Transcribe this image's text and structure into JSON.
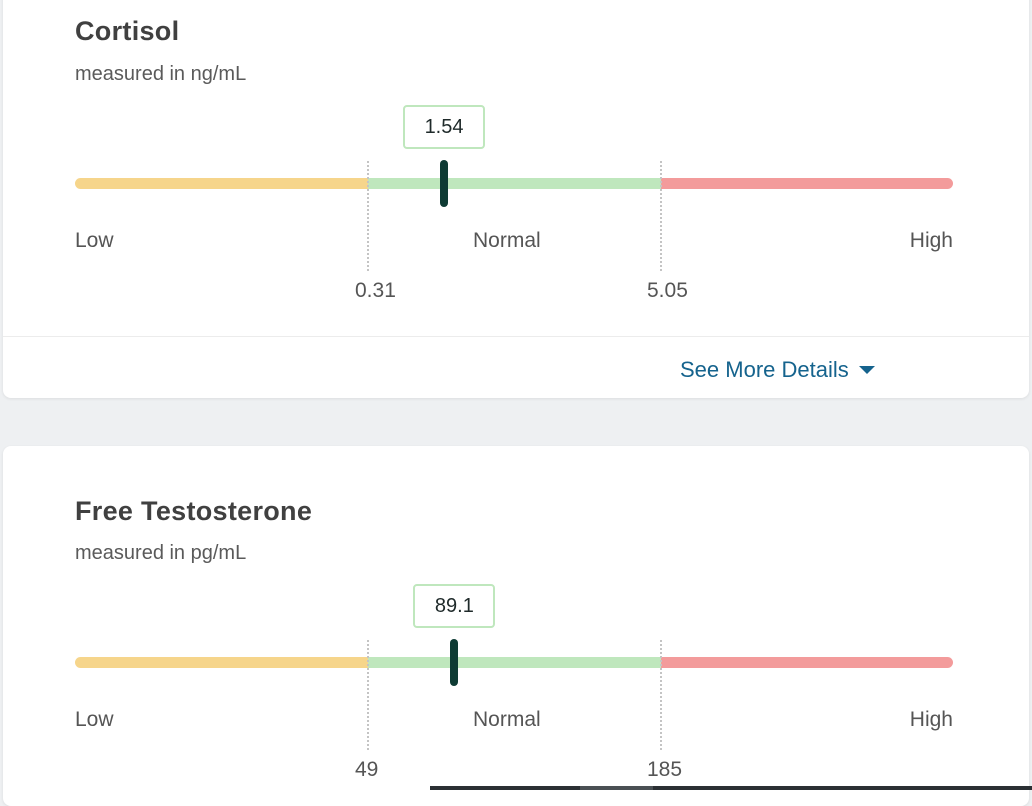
{
  "results": [
    {
      "name": "Cortisol",
      "unit_text": "measured in ng/mL",
      "value": "1.54",
      "value_numeric": 1.54,
      "range_low": 0.31,
      "range_high": 5.05,
      "low_threshold": "0.31",
      "high_threshold": "5.05",
      "zones": {
        "low": "Low",
        "normal": "Normal",
        "high": "High"
      },
      "details_label": "See More Details"
    },
    {
      "name": "Free Testosterone",
      "unit_text": "measured in pg/mL",
      "value": "89.1",
      "value_numeric": 89.1,
      "range_low": 49,
      "range_high": 185,
      "low_threshold": "49",
      "high_threshold": "185",
      "zones": {
        "low": "Low",
        "normal": "Normal",
        "high": "High"
      }
    }
  ],
  "colors": {
    "low_zone": "#f6d58b",
    "normal_zone": "#bfe7bd",
    "high_zone": "#f39b9b",
    "marker": "#0e3b34",
    "link": "#15638d"
  },
  "icons": {
    "details_toggle": "caret-down-icon"
  }
}
